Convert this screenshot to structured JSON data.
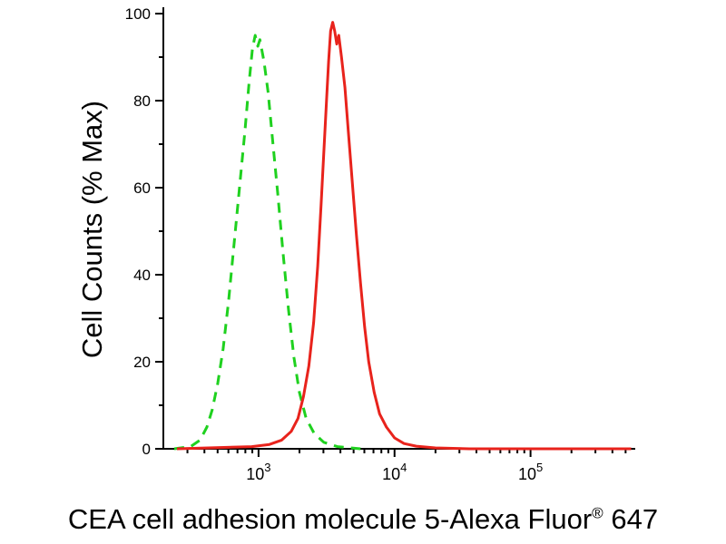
{
  "chart_data": {
    "type": "line",
    "subtype": "flow-cytometry-histogram",
    "title": "",
    "xlabel": "CEA cell adhesion molecule 5-Alexa Fluor® 647",
    "xlabel_parts": {
      "main": "CEA cell adhesion molecule 5-Alexa Fluor",
      "sup": "®",
      "suffix": " 647"
    },
    "ylabel": "Cell Counts (% Max)",
    "x_scale": "log10",
    "xlim_log": [
      2.3,
      5.77
    ],
    "x_tick_exponents": [
      3,
      4,
      5
    ],
    "ylim": [
      0,
      100
    ],
    "y_major_ticks": [
      0,
      20,
      40,
      60,
      80,
      100
    ],
    "y_minor_step": 10,
    "axis_color": "#000000",
    "background_color": "#ffffff",
    "grid": "off",
    "legend": "none",
    "series": [
      {
        "id": "green-dashed",
        "name": "green dashed histogram (peak near 1e3, ~95% max)",
        "color": "#1fd11f",
        "dash": "11 8",
        "points": [
          [
            2.38,
            0
          ],
          [
            2.5,
            0.5
          ],
          [
            2.57,
            2
          ],
          [
            2.62,
            5
          ],
          [
            2.66,
            9
          ],
          [
            2.7,
            15
          ],
          [
            2.74,
            23
          ],
          [
            2.78,
            34
          ],
          [
            2.82,
            47
          ],
          [
            2.86,
            60
          ],
          [
            2.9,
            73
          ],
          [
            2.93,
            84
          ],
          [
            2.955,
            92
          ],
          [
            2.975,
            95
          ],
          [
            2.995,
            92.5
          ],
          [
            3.01,
            94
          ],
          [
            3.04,
            89
          ],
          [
            3.07,
            82
          ],
          [
            3.1,
            72
          ],
          [
            3.14,
            59
          ],
          [
            3.18,
            45
          ],
          [
            3.22,
            32
          ],
          [
            3.26,
            21
          ],
          [
            3.3,
            13
          ],
          [
            3.35,
            7
          ],
          [
            3.41,
            3.5
          ],
          [
            3.48,
            1.5
          ],
          [
            3.58,
            0.5
          ],
          [
            3.75,
            0
          ]
        ]
      },
      {
        "id": "red-solid",
        "name": "red solid histogram (peak near 3.5e3, ~98% max)",
        "color": "#e8231c",
        "dash": "",
        "points": [
          [
            2.4,
            0
          ],
          [
            2.95,
            0.5
          ],
          [
            3.08,
            1
          ],
          [
            3.17,
            2
          ],
          [
            3.24,
            4
          ],
          [
            3.29,
            7
          ],
          [
            3.33,
            12
          ],
          [
            3.37,
            19
          ],
          [
            3.405,
            29
          ],
          [
            3.435,
            42
          ],
          [
            3.46,
            56
          ],
          [
            3.48,
            68
          ],
          [
            3.5,
            80
          ],
          [
            3.515,
            89
          ],
          [
            3.53,
            96
          ],
          [
            3.545,
            98
          ],
          [
            3.56,
            96
          ],
          [
            3.575,
            93
          ],
          [
            3.59,
            95
          ],
          [
            3.61,
            90
          ],
          [
            3.635,
            83
          ],
          [
            3.66,
            73
          ],
          [
            3.69,
            61
          ],
          [
            3.72,
            49
          ],
          [
            3.75,
            38
          ],
          [
            3.78,
            28
          ],
          [
            3.81,
            20
          ],
          [
            3.85,
            13
          ],
          [
            3.89,
            8
          ],
          [
            3.94,
            5
          ],
          [
            4.0,
            2.5
          ],
          [
            4.07,
            1.2
          ],
          [
            4.16,
            0.6
          ],
          [
            4.3,
            0.2
          ],
          [
            4.55,
            0
          ],
          [
            5.74,
            0
          ]
        ]
      }
    ]
  }
}
